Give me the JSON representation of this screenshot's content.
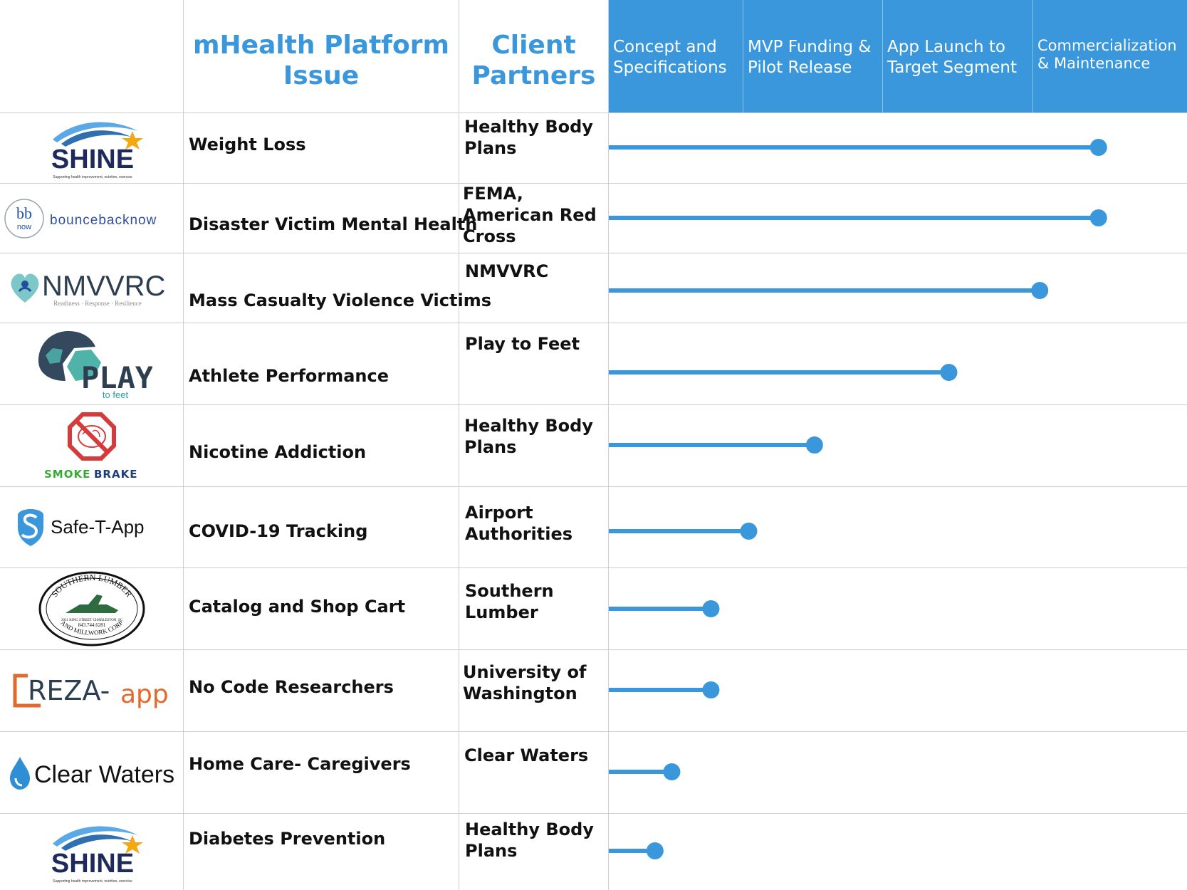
{
  "headers": {
    "issue": "mHealth Platform Issue",
    "client": "Client Partners",
    "stages": [
      "Concept and Specifications",
      "MVP Funding & Pilot Release",
      "App Launch to Target Segment",
      "Commercialization & Maintenance"
    ]
  },
  "colors": {
    "accent": "#3a97dc",
    "text": "#111111",
    "grid": "#cfcfcf"
  },
  "rows": [
    {
      "logo": {
        "name": "SHINE",
        "tagline": "Supporting health improvement, nutrition, exercise",
        "icon": "shooting-star-icon"
      },
      "issue": "Weight Loss",
      "client": "Healthy Body Plans"
    },
    {
      "logo": {
        "name": "bouncebacknow",
        "mark": "bb now",
        "icon": "bb-now-circle-icon"
      },
      "issue": "Disaster Victim Mental Health",
      "client": "FEMA, American Red Cross"
    },
    {
      "logo": {
        "name": "NMVVRC",
        "tagline": "Readiness · Response · Resilience",
        "icon": "heart-people-icon"
      },
      "issue": "Mass Casualty Violence Victims",
      "client": "NMVVRC"
    },
    {
      "logo": {
        "name": "PLAY",
        "sub": "to feet",
        "icon": "soccer-ball-icon"
      },
      "issue": "Athlete Performance",
      "client": "Play to Feet"
    },
    {
      "logo": {
        "name": "SMOKE BRAKE",
        "part1": "SMOKE",
        "part2": "BRAKE",
        "icon": "no-smoking-brain-icon"
      },
      "issue": "Nicotine Addiction",
      "client": "Healthy Body Plans"
    },
    {
      "logo": {
        "name": "Safe-T-App",
        "icon": "safe-t-shield-icon"
      },
      "issue": "COVID-19 Tracking",
      "client": "Airport Authorities"
    },
    {
      "logo": {
        "name": "SOUTHERN LUMBER AND MILLWORK CORP",
        "address": "2031 KING STREET  CHARLESTON, SC",
        "phone": "843.744.6281",
        "icon": "hand-plane-icon"
      },
      "issue": "Catalog and Shop Cart",
      "client": "Southern Lumber"
    },
    {
      "logo": {
        "name": "REZA-app",
        "part1": "REZA-",
        "part2": "app",
        "icon": "bracket-icon"
      },
      "issue": "No Code Researchers",
      "client": "University of Washington"
    },
    {
      "logo": {
        "name": "Clear Waters",
        "icon": "water-drop-icon"
      },
      "issue": "Home Care- Caregivers",
      "client": "Clear Waters"
    },
    {
      "logo": {
        "name": "SHINE",
        "tagline": "Supporting health improvement, nutrition, exercise",
        "icon": "shooting-star-icon"
      },
      "issue": "Diabetes Prevention",
      "client": "Healthy Body Plans"
    }
  ],
  "chart_data": {
    "type": "bar",
    "orientation": "horizontal",
    "style": "lollipop",
    "stages": [
      "Concept and Specifications",
      "MVP Funding & Pilot Release",
      "App Launch to Target Segment",
      "Commercialization & Maintenance"
    ],
    "categories": [
      "Weight Loss",
      "Disaster Victim Mental Health",
      "Mass Casualty Violence Victims",
      "Athlete Performance",
      "Nicotine Addiction",
      "COVID-19 Tracking",
      "Catalog and Shop Cart",
      "No Code Researchers",
      "Home Care- Caregivers",
      "Diabetes Prevention"
    ],
    "values": [
      3.5,
      3.5,
      3.08,
      2.43,
      1.47,
      1.0,
      0.73,
      0.73,
      0.45,
      0.33
    ],
    "xlim": [
      0,
      4
    ],
    "color": "#3a97dc"
  }
}
